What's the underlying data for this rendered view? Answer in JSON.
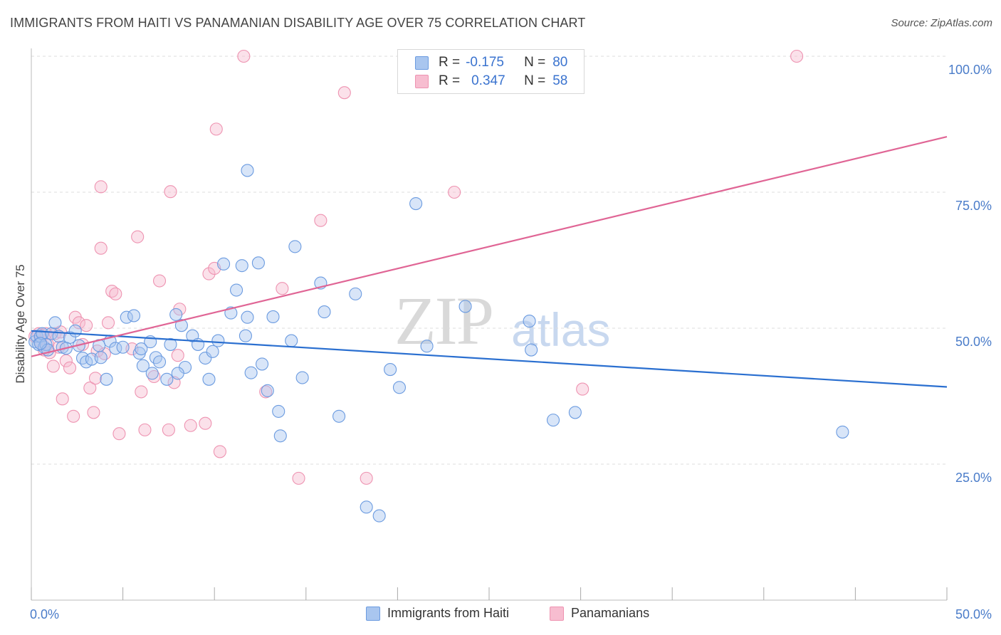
{
  "header": {
    "title": "IMMIGRANTS FROM HAITI VS PANAMANIAN DISABILITY AGE OVER 75 CORRELATION CHART",
    "source": "Source: ZipAtlas.com"
  },
  "watermark": {
    "zip": "ZIP",
    "atlas": "atlas"
  },
  "legend": {
    "rows": [
      {
        "r_label": "R =",
        "r_value": "-0.175",
        "n_label": "N =",
        "n_value": "80"
      },
      {
        "r_label": "R =",
        "r_value": "0.347",
        "n_label": "N =",
        "n_value": "58"
      }
    ]
  },
  "bottom_legend": {
    "haiti": "Immigrants from Haiti",
    "panama": "Panamanians"
  },
  "colors": {
    "haiti_fill": "#a9c6ef",
    "haiti_stroke": "#6b9be0",
    "haiti_line": "#2a6fd0",
    "panama_fill": "#f7bdd0",
    "panama_stroke": "#ee93b1",
    "panama_line": "#e06595",
    "grid": "#dcdcdc",
    "tick_text": "#4a7cc9"
  },
  "chart_data": {
    "type": "scatter",
    "title": "IMMIGRANTS FROM HAITI VS PANAMANIAN DISABILITY AGE OVER 75 CORRELATION CHART",
    "xlabel": "",
    "ylabel": "Disability Age Over 75",
    "xlim": [
      0,
      50
    ],
    "ylim": [
      0,
      100
    ],
    "x_tick_labels": [
      "0.0%",
      "50.0%"
    ],
    "y_ticks": [
      25,
      50,
      75,
      100
    ],
    "y_tick_labels": [
      "25.0%",
      "50.0%",
      "75.0%",
      "100.0%"
    ],
    "grid": true,
    "legend_position": "top-center",
    "series": [
      {
        "name": "Immigrants from Haiti",
        "trend": {
          "x": [
            0,
            50
          ],
          "y": [
            49.5,
            39.2
          ]
        },
        "points": [
          [
            0.2,
            47.5
          ],
          [
            0.3,
            48.5
          ],
          [
            0.4,
            47
          ],
          [
            0.5,
            48.5
          ],
          [
            0.6,
            49
          ],
          [
            0.7,
            46.5
          ],
          [
            0.8,
            47
          ],
          [
            0.9,
            46
          ],
          [
            1.1,
            49
          ],
          [
            1.3,
            51
          ],
          [
            1.5,
            48.5
          ],
          [
            1.7,
            46.5
          ],
          [
            2.1,
            48.3
          ],
          [
            2.4,
            49.5
          ],
          [
            2.6,
            46.8
          ],
          [
            2.8,
            44.5
          ],
          [
            3.0,
            43.8
          ],
          [
            3.3,
            44.3
          ],
          [
            3.7,
            46.8
          ],
          [
            3.8,
            44.6
          ],
          [
            4.1,
            40.6
          ],
          [
            4.3,
            47.6
          ],
          [
            4.6,
            46.3
          ],
          [
            5.0,
            46.5
          ],
          [
            5.2,
            52
          ],
          [
            5.6,
            52.3
          ],
          [
            5.9,
            45.4
          ],
          [
            6.1,
            43.1
          ],
          [
            6.5,
            47.5
          ],
          [
            6.6,
            41.7
          ],
          [
            6.8,
            44.6
          ],
          [
            7.0,
            43.8
          ],
          [
            7.4,
            40.6
          ],
          [
            7.6,
            47
          ],
          [
            7.9,
            52.5
          ],
          [
            8.2,
            50.5
          ],
          [
            8.4,
            42.8
          ],
          [
            8.8,
            48.6
          ],
          [
            9.1,
            47
          ],
          [
            9.5,
            44.5
          ],
          [
            9.7,
            40.6
          ],
          [
            9.9,
            45.7
          ],
          [
            10.2,
            47.7
          ],
          [
            10.5,
            61.8
          ],
          [
            10.9,
            52.8
          ],
          [
            11.2,
            57
          ],
          [
            11.5,
            61.5
          ],
          [
            11.7,
            48.6
          ],
          [
            11.8,
            52
          ],
          [
            12.0,
            41.8
          ],
          [
            12.4,
            62
          ],
          [
            12.6,
            43.4
          ],
          [
            12.9,
            38.5
          ],
          [
            13.2,
            52.1
          ],
          [
            13.5,
            34.7
          ],
          [
            13.6,
            30.2
          ],
          [
            14.2,
            47.7
          ],
          [
            14.4,
            65
          ],
          [
            14.8,
            40.9
          ],
          [
            15.8,
            58.3
          ],
          [
            16.0,
            53
          ],
          [
            16.8,
            33.8
          ],
          [
            17.7,
            56.3
          ],
          [
            18.3,
            17.1
          ],
          [
            19.0,
            15.5
          ],
          [
            19.6,
            42.4
          ],
          [
            20.1,
            39.1
          ],
          [
            21.0,
            72.9
          ],
          [
            21.6,
            46.7
          ],
          [
            23.7,
            54
          ],
          [
            27.2,
            51.3
          ],
          [
            27.3,
            46
          ],
          [
            28.5,
            33.1
          ],
          [
            29.7,
            34.5
          ],
          [
            44.3,
            30.9
          ],
          [
            11.8,
            79
          ],
          [
            0.5,
            47.2
          ],
          [
            1.9,
            46.3
          ],
          [
            6.0,
            46.2
          ],
          [
            8.0,
            41.7
          ]
        ]
      },
      {
        "name": "Panamanians",
        "trend": {
          "x": [
            0,
            50
          ],
          "y": [
            44.8,
            85.2
          ]
        },
        "points": [
          [
            0.2,
            48.5
          ],
          [
            0.4,
            49
          ],
          [
            0.5,
            47.5
          ],
          [
            0.6,
            48.7
          ],
          [
            0.8,
            49
          ],
          [
            0.9,
            47
          ],
          [
            1.0,
            45.5
          ],
          [
            1.2,
            43
          ],
          [
            1.3,
            49
          ],
          [
            1.5,
            46.5
          ],
          [
            1.7,
            37
          ],
          [
            1.9,
            44
          ],
          [
            2.1,
            42.7
          ],
          [
            2.3,
            33.8
          ],
          [
            2.4,
            52
          ],
          [
            2.6,
            51
          ],
          [
            2.8,
            47
          ],
          [
            3.0,
            50.5
          ],
          [
            3.2,
            39
          ],
          [
            3.4,
            34.5
          ],
          [
            3.5,
            40.8
          ],
          [
            3.6,
            45.8
          ],
          [
            3.8,
            64.7
          ],
          [
            3.8,
            76
          ],
          [
            4.0,
            45.3
          ],
          [
            4.2,
            51
          ],
          [
            4.4,
            56.8
          ],
          [
            4.6,
            56.3
          ],
          [
            4.8,
            30.6
          ],
          [
            5.5,
            46.2
          ],
          [
            5.8,
            66.8
          ],
          [
            6.0,
            38.3
          ],
          [
            6.2,
            31.3
          ],
          [
            6.7,
            41.1
          ],
          [
            7.0,
            58.7
          ],
          [
            7.5,
            31.3
          ],
          [
            7.6,
            75.1
          ],
          [
            7.8,
            40
          ],
          [
            8.0,
            45
          ],
          [
            8.1,
            53.5
          ],
          [
            8.7,
            32.1
          ],
          [
            9.5,
            32.5
          ],
          [
            9.7,
            60
          ],
          [
            10.0,
            61
          ],
          [
            10.1,
            86.6
          ],
          [
            10.3,
            27.3
          ],
          [
            11.6,
            100
          ],
          [
            12.8,
            38.3
          ],
          [
            13.7,
            57.3
          ],
          [
            14.6,
            22.4
          ],
          [
            15.8,
            69.8
          ],
          [
            17.1,
            93.3
          ],
          [
            18.3,
            22.4
          ],
          [
            23.1,
            75
          ],
          [
            30.1,
            38.8
          ],
          [
            41.8,
            100
          ],
          [
            0.7,
            46
          ],
          [
            1.6,
            49.3
          ]
        ]
      }
    ]
  }
}
